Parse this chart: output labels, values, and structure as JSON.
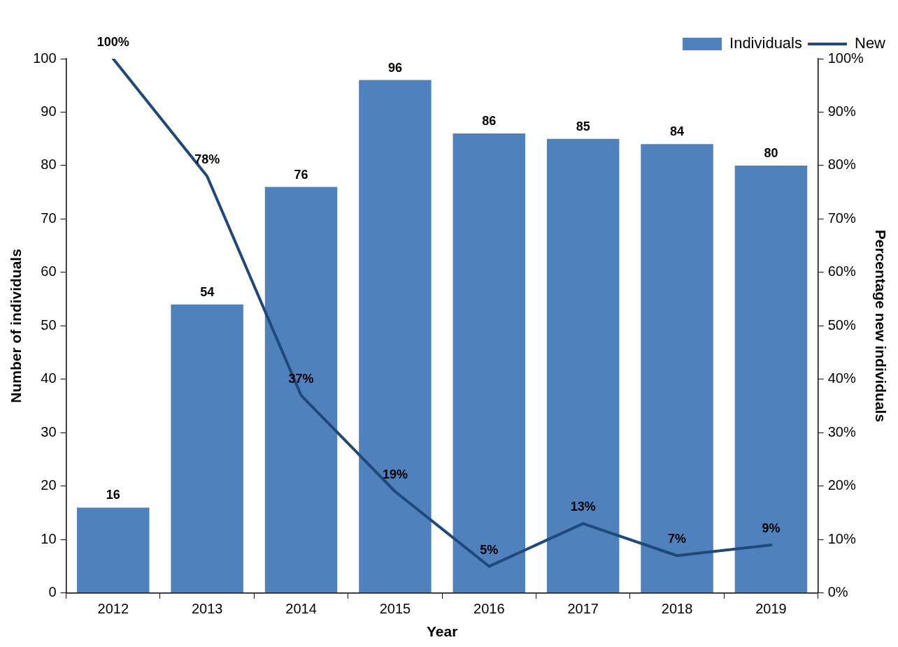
{
  "chart_data": {
    "type": "bar",
    "xlabel": "Year",
    "ylabel": "Number of individuals",
    "y2label": "Percentage new individuals",
    "categories": [
      "2012",
      "2013",
      "2014",
      "2015",
      "2016",
      "2017",
      "2018",
      "2019"
    ],
    "series": [
      {
        "name": "Individuals",
        "color": "#4f81bd",
        "values": [
          16,
          54,
          76,
          96,
          86,
          85,
          84,
          80
        ],
        "value_labels": [
          "16",
          "54",
          "76",
          "96",
          "86",
          "85",
          "84",
          "80"
        ]
      },
      {
        "name": "New",
        "type": "line",
        "axis": "y2",
        "color": "#1f497d",
        "values": [
          100,
          78,
          37,
          19,
          5,
          13,
          7,
          9
        ],
        "value_labels": [
          "100%",
          "78%",
          "37%",
          "19%",
          "5%",
          "13%",
          "7%",
          "9%"
        ]
      }
    ],
    "ylim": [
      0,
      100
    ],
    "yticks": [
      0,
      10,
      20,
      30,
      40,
      50,
      60,
      70,
      80,
      90,
      100
    ],
    "y2lim": [
      0,
      100
    ],
    "y2ticks": [
      {
        "value": 0,
        "label": "0%"
      },
      {
        "value": 10,
        "label": "10%"
      },
      {
        "value": 20,
        "label": "20%"
      },
      {
        "value": 30,
        "label": "30%"
      },
      {
        "value": 40,
        "label": "40%"
      },
      {
        "value": 50,
        "label": "50%"
      },
      {
        "value": 60,
        "label": "60%"
      },
      {
        "value": 70,
        "label": "70%"
      },
      {
        "value": 80,
        "label": "80%"
      },
      {
        "value": 90,
        "label": "90%"
      },
      {
        "value": 100,
        "label": "100%"
      }
    ],
    "grid": false,
    "legend": "top right",
    "marker": "none",
    "line_style": "solid"
  }
}
